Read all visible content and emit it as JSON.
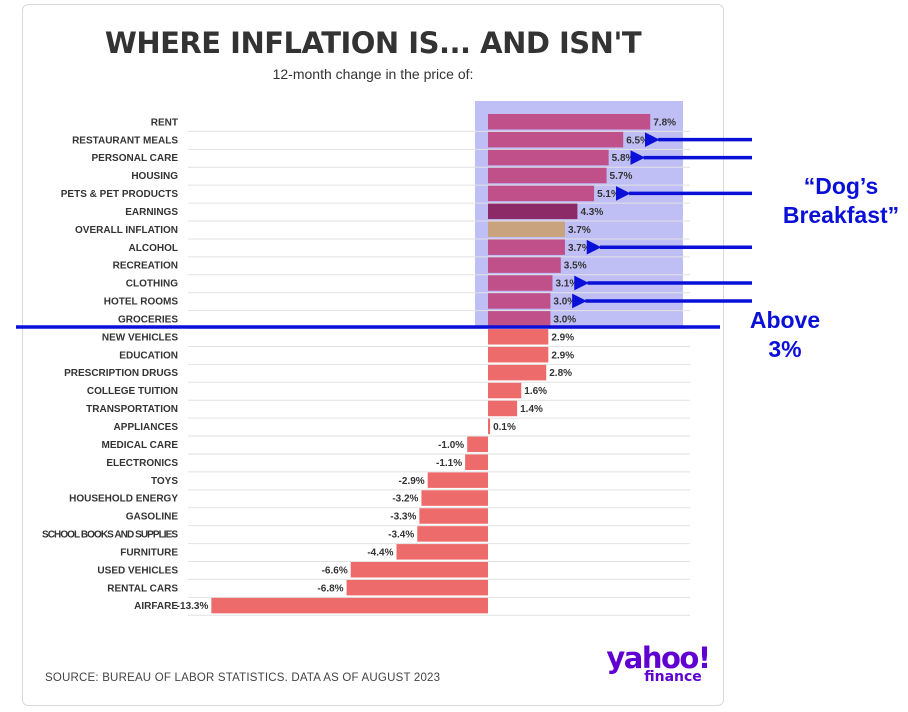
{
  "header": {
    "title": "WHERE INFLATION IS... AND ISN'T",
    "subtitle": "12-month change in the price of:"
  },
  "footer": {
    "source": "SOURCE: BUREAU OF LABOR STATISTICS. DATA AS OF AUGUST 2023",
    "logo_main": "yahoo!",
    "logo_sub": "finance"
  },
  "annotations": {
    "dogs_line1": "“Dog’s",
    "dogs_line2": "Breakfast”",
    "above_line1": "Above",
    "above_line2": "3%",
    "color": "#0a10d8",
    "highlight_color": "#b8b8f5",
    "arrow_targets": [
      "RESTAURANT MEALS",
      "PERSONAL CARE",
      "PETS & PET PRODUCTS",
      "ALCOHOL",
      "CLOTHING",
      "HOTEL ROOMS"
    ]
  },
  "chart_data": {
    "type": "bar",
    "orientation": "horizontal",
    "title": "WHERE INFLATION IS... AND ISN'T",
    "subtitle": "12-month change in the price of:",
    "categories": [
      "RENT",
      "RESTAURANT MEALS",
      "PERSONAL CARE",
      "HOUSING",
      "PETS & PET PRODUCTS",
      "EARNINGS",
      "OVERALL INFLATION",
      "ALCOHOL",
      "RECREATION",
      "CLOTHING",
      "HOTEL ROOMS",
      "GROCERIES",
      "NEW VEHICLES",
      "EDUCATION",
      "PRESCRIPTION DRUGS",
      "COLLEGE TUITION",
      "TRANSPORTATION",
      "APPLIANCES",
      "MEDICAL CARE",
      "ELECTRONICS",
      "TOYS",
      "HOUSEHOLD ENERGY",
      "GASOLINE",
      "SCHOOL BOOKS AND SUPPLIES",
      "FURNITURE",
      "USED VEHICLES",
      "RENTAL CARS",
      "AIRFARE"
    ],
    "values": [
      7.8,
      6.5,
      5.8,
      5.7,
      5.1,
      4.3,
      3.7,
      3.7,
      3.5,
      3.1,
      3.0,
      3.0,
      2.9,
      2.9,
      2.8,
      1.6,
      1.4,
      0.1,
      -1.0,
      -1.1,
      -2.9,
      -3.2,
      -3.3,
      -3.4,
      -4.4,
      -6.6,
      -6.8,
      -13.3
    ],
    "labels": [
      "7.8%",
      "6.5%",
      "5.8%",
      "5.7%",
      "5.1%",
      "4.3%",
      "3.7%",
      "3.7%",
      "3.5%",
      "3.1%",
      "3.0%",
      "3.0%",
      "2.9%",
      "2.9%",
      "2.8%",
      "1.6%",
      "1.4%",
      "0.1%",
      "-1.0%",
      "-1.1%",
      "-2.9%",
      "-3.2%",
      "-3.3%",
      "-3.4%",
      "-4.4%",
      "-6.6%",
      "-6.8%",
      "-13.3%"
    ],
    "colors": {
      "above_3": "#c0508a",
      "earnings": "#8b2a66",
      "overall_inflation": "#c9a27e",
      "below_3": "#ee6b6b"
    },
    "xlim": [
      -13.3,
      7.8
    ],
    "grid": true,
    "unit": "%"
  }
}
